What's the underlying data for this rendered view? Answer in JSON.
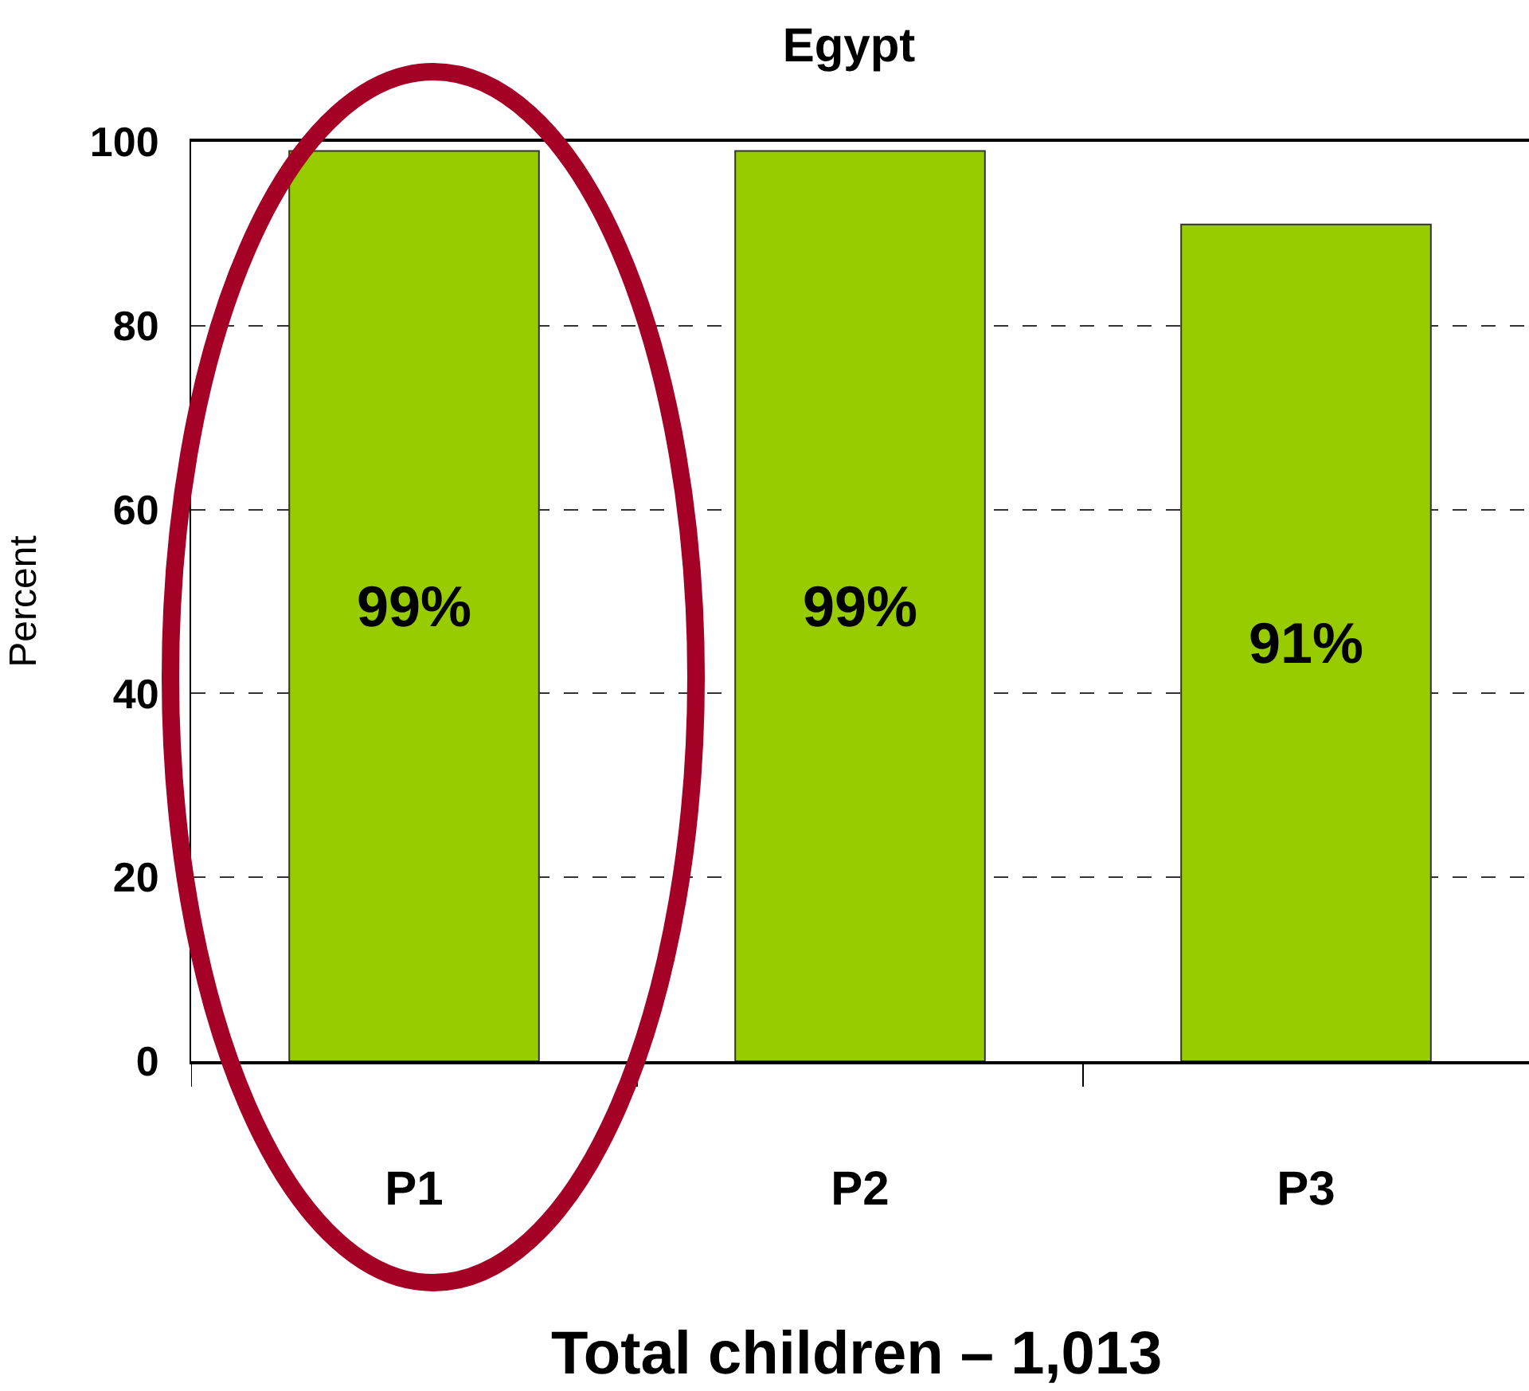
{
  "chart_data": {
    "type": "bar",
    "title": "Egypt",
    "ylabel": "Percent",
    "categories": [
      "P1",
      "P2",
      "P3"
    ],
    "values": [
      99,
      99,
      91
    ],
    "color": "#99cc00",
    "value_labels": [
      "99%",
      "99%",
      "91%"
    ],
    "ylim": [
      0,
      100
    ],
    "yticks": [
      0,
      20,
      40,
      60,
      80,
      100
    ],
    "grid": "y",
    "annotations": [
      "Total children – 1,013"
    ]
  }
}
